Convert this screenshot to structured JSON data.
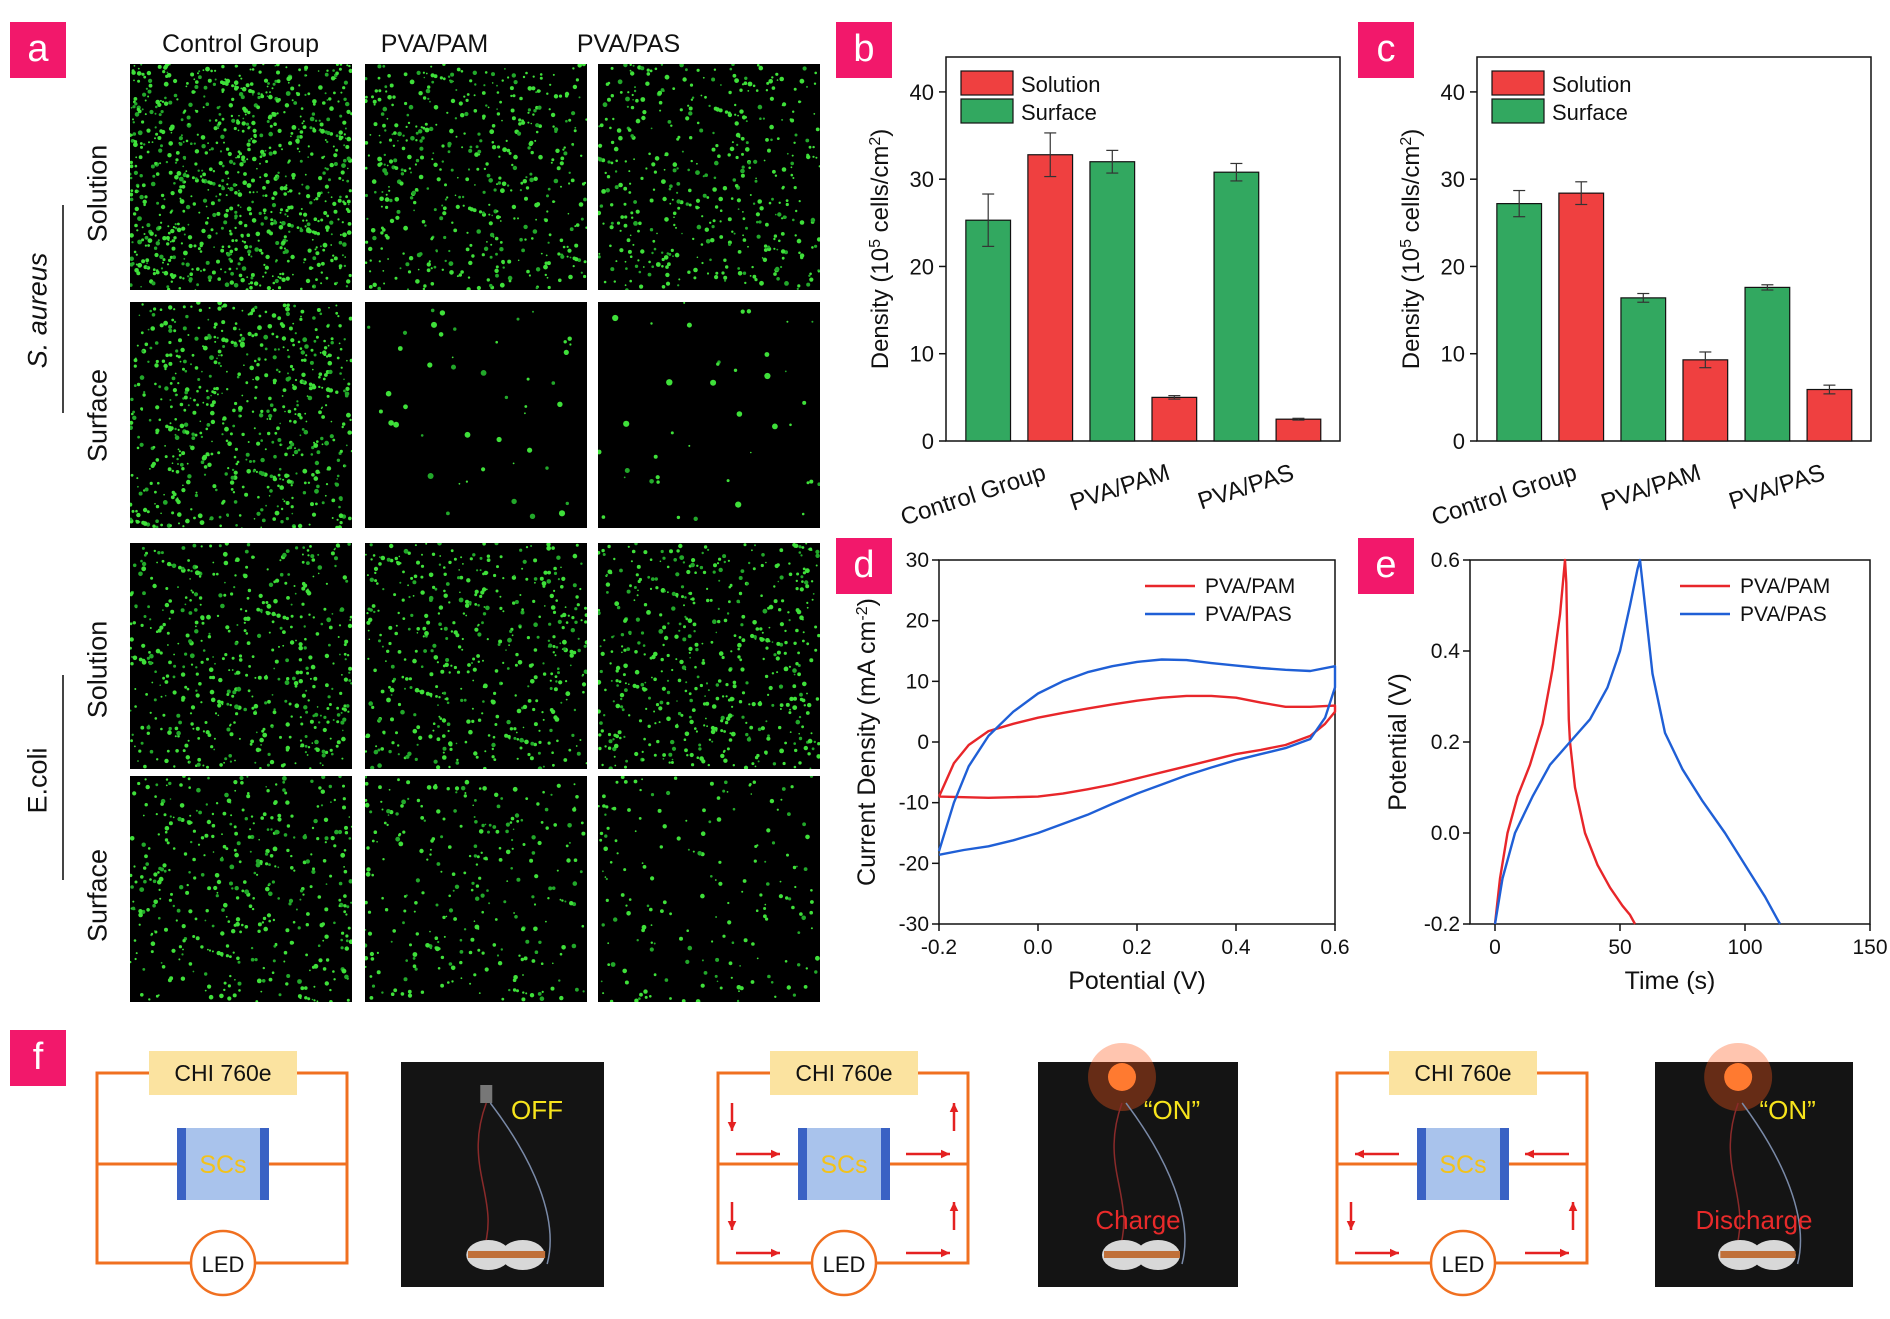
{
  "panel_a": {
    "label": "a",
    "columns": [
      "Control Group",
      "PVA/PAM",
      "PVA/PAS"
    ],
    "rows": [
      "Solution",
      "Surface",
      "Solution",
      "Surface"
    ],
    "groups": [
      "S. aureus",
      "E.coli"
    ]
  },
  "panel_b": {
    "label": "b"
  },
  "panel_c": {
    "label": "c"
  },
  "panel_d": {
    "label": "d"
  },
  "panel_e": {
    "label": "e"
  },
  "panel_f": {
    "label": "f",
    "instrument": "CHI 760e",
    "device": "SCs",
    "load": "LED",
    "photo_texts": [
      "OFF",
      "“ON”",
      "“ON”"
    ],
    "photo_captions": [
      "",
      "Charge",
      "Discharge"
    ]
  },
  "colors": {
    "solution": "#ef4040",
    "surface": "#32a860",
    "pam": "#e8262a",
    "pas": "#1f5fd6",
    "accent": "#f2186b",
    "circuit": "#f07020"
  },
  "chart_data": [
    {
      "id": "b",
      "type": "bar",
      "categories": [
        "Control Group",
        "PVA/PAM",
        "PVA/PAS"
      ],
      "series": [
        {
          "name": "Solution",
          "values": [
            32.8,
            5.0,
            2.5
          ],
          "errors": [
            2.5,
            0.2,
            0.1
          ]
        },
        {
          "name": "Surface",
          "values": [
            25.3,
            32.0,
            30.8
          ],
          "errors": [
            3.0,
            1.3,
            1.0
          ]
        }
      ],
      "bar_order": [
        "Surface",
        "Solution",
        "Surface",
        "Solution",
        "Surface",
        "Solution"
      ],
      "bar_values": [
        25.3,
        32.8,
        32.0,
        5.0,
        30.8,
        2.5
      ],
      "bar_errors": [
        3.0,
        2.5,
        1.3,
        0.2,
        1.0,
        0.1
      ],
      "bar_series": [
        "Surface",
        "Solution",
        "Surface",
        "Solution",
        "Surface",
        "Solution"
      ],
      "ylabel_pre": "Density (10",
      "ylabel_sup1": "5",
      "ylabel_mid": " cells/cm",
      "ylabel_sup2": "2",
      "ylabel_post": ")",
      "ylim": [
        0,
        44
      ],
      "yticks": [
        0,
        10,
        20,
        30,
        40
      ],
      "legend": "top-left"
    },
    {
      "id": "c",
      "type": "bar",
      "categories": [
        "Control Group",
        "PVA/PAM",
        "PVA/PAS"
      ],
      "series": [
        {
          "name": "Solution",
          "values": [
            28.4,
            9.3,
            5.9
          ],
          "errors": [
            1.3,
            0.9,
            0.5
          ]
        },
        {
          "name": "Surface",
          "values": [
            27.2,
            16.4,
            17.6
          ],
          "errors": [
            1.5,
            0.5,
            0.3
          ]
        }
      ],
      "bar_order": [
        "Surface",
        "Solution",
        "Surface",
        "Solution",
        "Surface",
        "Solution"
      ],
      "bar_values": [
        27.2,
        28.4,
        16.4,
        9.3,
        17.6,
        5.9
      ],
      "bar_errors": [
        1.5,
        1.3,
        0.5,
        0.9,
        0.3,
        0.5
      ],
      "bar_series": [
        "Surface",
        "Solution",
        "Surface",
        "Solution",
        "Surface",
        "Solution"
      ],
      "ylabel_pre": "Density (10",
      "ylabel_sup1": "5",
      "ylabel_mid": " cells/cm",
      "ylabel_sup2": "2",
      "ylabel_post": ")",
      "ylim": [
        0,
        44
      ],
      "yticks": [
        0,
        10,
        20,
        30,
        40
      ],
      "legend": "top-left"
    },
    {
      "id": "d",
      "type": "line",
      "xlabel": "Potential (V)",
      "ylabel_pre": "Current Density (mA cm",
      "ylabel_sup": "-2",
      "ylabel_post": ")",
      "xlim": [
        -0.2,
        0.6
      ],
      "ylim": [
        -30,
        30
      ],
      "xticks": [
        -0.2,
        0.0,
        0.2,
        0.4,
        0.6
      ],
      "xtick_labels": [
        "-0.2",
        "0.0",
        "0.2",
        "0.4",
        "0.6"
      ],
      "yticks": [
        -30,
        -20,
        -10,
        0,
        10,
        20,
        30
      ],
      "legend": "top-right",
      "series": [
        {
          "name": "PVA/PAM",
          "x": [
            -0.2,
            -0.17,
            -0.14,
            -0.1,
            -0.05,
            0.0,
            0.05,
            0.1,
            0.15,
            0.2,
            0.25,
            0.3,
            0.35,
            0.4,
            0.45,
            0.5,
            0.55,
            0.6,
            0.6,
            0.58,
            0.55,
            0.5,
            0.45,
            0.4,
            0.35,
            0.3,
            0.25,
            0.2,
            0.15,
            0.1,
            0.05,
            0.0,
            -0.05,
            -0.1,
            -0.15,
            -0.2
          ],
          "y": [
            -9.0,
            -3.5,
            -0.5,
            1.8,
            3.0,
            4.0,
            4.8,
            5.5,
            6.2,
            6.8,
            7.3,
            7.6,
            7.6,
            7.3,
            6.5,
            5.8,
            5.8,
            6.0,
            5.0,
            3.0,
            1.0,
            -0.5,
            -1.3,
            -2.0,
            -3.0,
            -4.0,
            -5.0,
            -6.0,
            -7.0,
            -7.8,
            -8.5,
            -9.0,
            -9.1,
            -9.2,
            -9.1,
            -9.0
          ]
        },
        {
          "name": "PVA/PAS",
          "x": [
            -0.2,
            -0.17,
            -0.14,
            -0.1,
            -0.05,
            0.0,
            0.05,
            0.1,
            0.15,
            0.2,
            0.25,
            0.3,
            0.35,
            0.4,
            0.45,
            0.5,
            0.55,
            0.6,
            0.6,
            0.58,
            0.55,
            0.5,
            0.45,
            0.4,
            0.35,
            0.3,
            0.25,
            0.2,
            0.15,
            0.1,
            0.05,
            0.0,
            -0.05,
            -0.1,
            -0.15,
            -0.2
          ],
          "y": [
            -18.0,
            -10.0,
            -4.0,
            1.0,
            5.0,
            8.0,
            10.0,
            11.5,
            12.5,
            13.2,
            13.6,
            13.5,
            13.0,
            12.6,
            12.2,
            11.9,
            11.7,
            12.5,
            9.0,
            4.0,
            0.5,
            -1.0,
            -2.0,
            -3.0,
            -4.2,
            -5.5,
            -7.0,
            -8.5,
            -10.2,
            -12.0,
            -13.5,
            -15.0,
            -16.2,
            -17.2,
            -17.8,
            -18.6
          ]
        }
      ]
    },
    {
      "id": "e",
      "type": "line",
      "xlabel": "Time (s)",
      "ylabel": "Potential (V)",
      "xlim": [
        -10,
        150
      ],
      "ylim": [
        -0.2,
        0.6
      ],
      "xticks": [
        0,
        50,
        100,
        150
      ],
      "xtick_labels": [
        "0",
        "50",
        "100",
        "150"
      ],
      "yticks": [
        -0.2,
        0.0,
        0.2,
        0.4,
        0.6
      ],
      "ytick_labels": [
        "-0.2",
        "0.0",
        "0.2",
        "0.4",
        "0.6"
      ],
      "legend": "top-right",
      "series": [
        {
          "name": "PVA/PAM",
          "x": [
            0,
            2,
            5,
            9,
            14,
            19,
            23,
            26,
            28,
            28.5,
            29,
            29.5,
            30,
            32,
            36,
            41,
            46,
            51,
            54,
            56
          ],
          "y": [
            -0.2,
            -0.1,
            0.0,
            0.08,
            0.15,
            0.24,
            0.36,
            0.48,
            0.6,
            0.55,
            0.4,
            0.25,
            0.2,
            0.1,
            0.0,
            -0.07,
            -0.12,
            -0.16,
            -0.18,
            -0.2
          ]
        },
        {
          "name": "PVA/PAS",
          "x": [
            0,
            3,
            8,
            15,
            22,
            30,
            38,
            45,
            50,
            54,
            57,
            58,
            60,
            63,
            68,
            75,
            83,
            92,
            100,
            108,
            114
          ],
          "y": [
            -0.2,
            -0.1,
            0.0,
            0.08,
            0.15,
            0.2,
            0.25,
            0.32,
            0.4,
            0.5,
            0.58,
            0.6,
            0.5,
            0.35,
            0.22,
            0.14,
            0.07,
            0.0,
            -0.07,
            -0.14,
            -0.2
          ]
        }
      ]
    }
  ]
}
